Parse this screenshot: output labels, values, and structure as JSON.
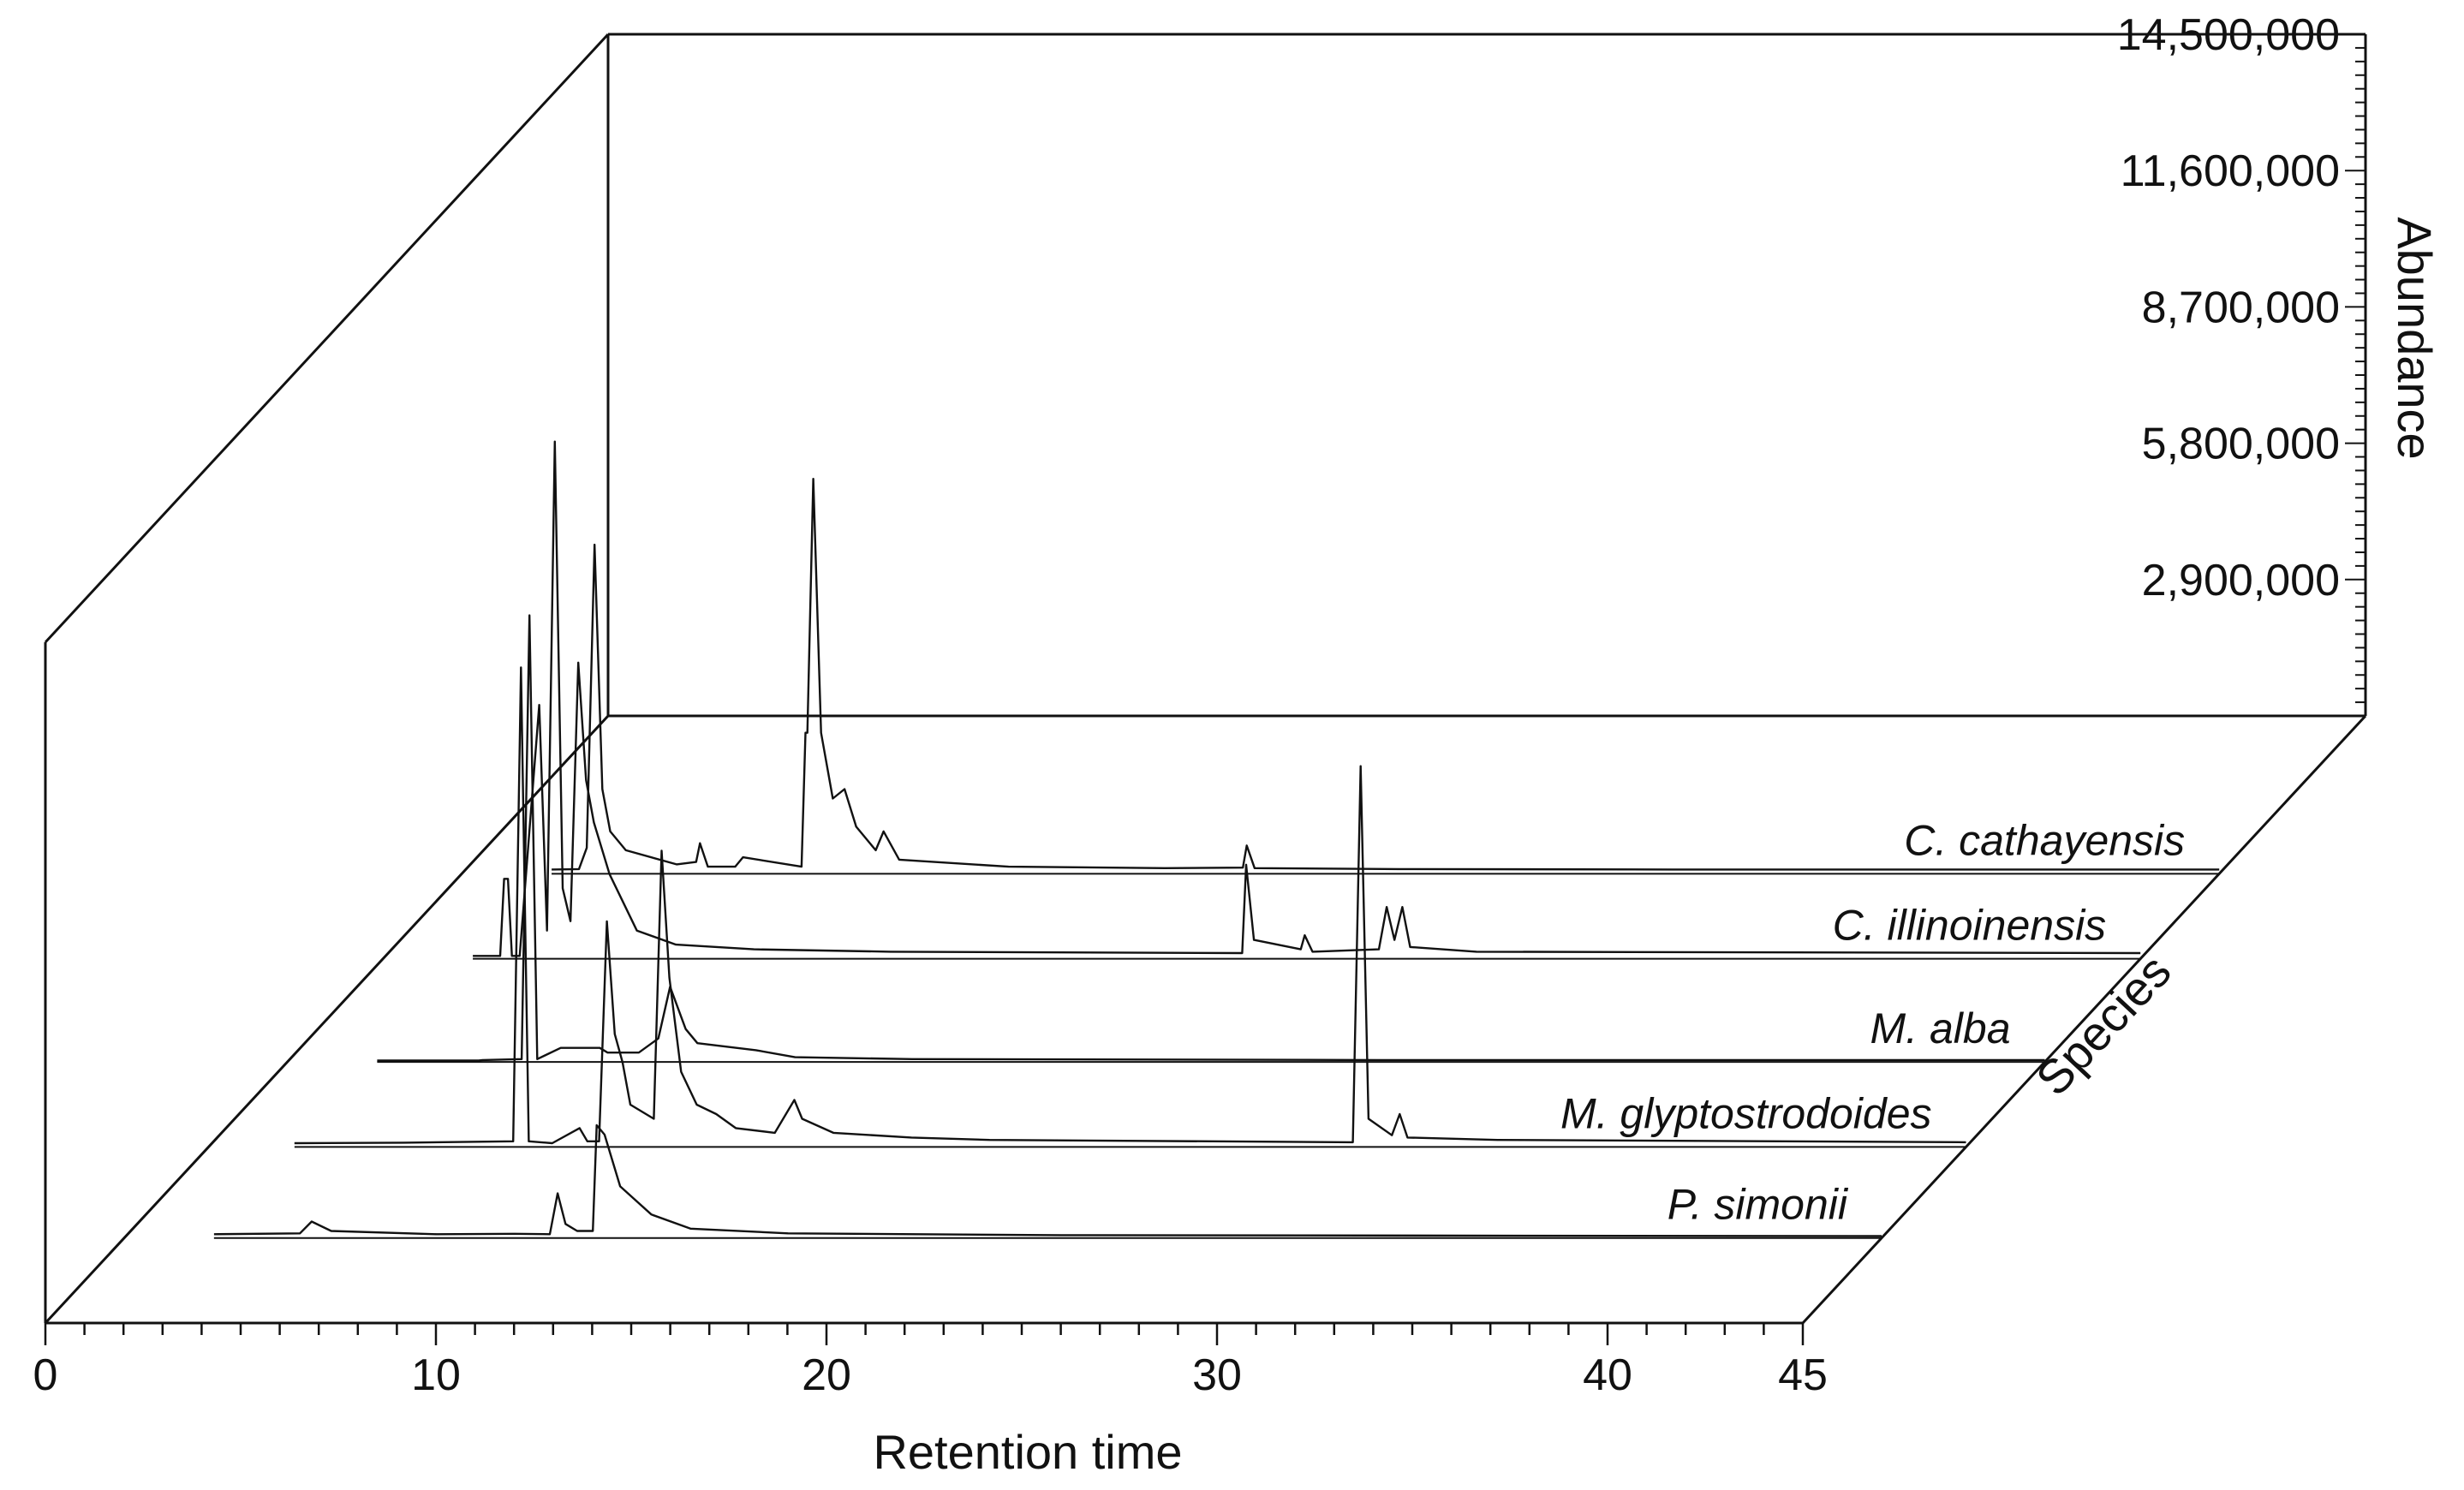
{
  "chart_data": {
    "type": "line",
    "title": "",
    "xlabel": "Retention time",
    "ylabel": "Abundance",
    "zlabel": "Species",
    "x_ticks": [
      "0",
      "10",
      "20",
      "30",
      "40",
      "45"
    ],
    "xlim": [
      0,
      45
    ],
    "y_ticks": [
      "2,900,000",
      "5,800,000",
      "8,700,000",
      "11,600,000",
      "14,500,000"
    ],
    "ylim": [
      0,
      14500000
    ],
    "series": [
      {
        "name": "P. simonii",
        "points": [
          [
            2.3,
            80000
          ],
          [
            4.5,
            100000
          ],
          [
            4.8,
            350000
          ],
          [
            5.3,
            150000
          ],
          [
            8.0,
            80000
          ],
          [
            10.0,
            90000
          ],
          [
            10.9,
            80000
          ],
          [
            11.1,
            950000
          ],
          [
            11.3,
            300000
          ],
          [
            11.6,
            150000
          ],
          [
            12.0,
            150000
          ],
          [
            12.1,
            2400000
          ],
          [
            12.3,
            2200000
          ],
          [
            12.7,
            1100000
          ],
          [
            13.5,
            500000
          ],
          [
            14.5,
            200000
          ],
          [
            17.0,
            100000
          ],
          [
            24.0,
            60000
          ],
          [
            45.0,
            40000
          ]
        ]
      },
      {
        "name": "M. glyptostrodoides",
        "points": [
          [
            2.2,
            80000
          ],
          [
            5.0,
            90000
          ],
          [
            7.8,
            120000
          ],
          [
            8.0,
            10200000
          ],
          [
            8.2,
            120000
          ],
          [
            8.8,
            80000
          ],
          [
            9.5,
            400000
          ],
          [
            9.7,
            120000
          ],
          [
            10.0,
            120000
          ],
          [
            10.2,
            4800000
          ],
          [
            10.4,
            2400000
          ],
          [
            10.6,
            1800000
          ],
          [
            10.8,
            900000
          ],
          [
            11.4,
            600000
          ],
          [
            11.6,
            6300000
          ],
          [
            11.8,
            3600000
          ],
          [
            12.1,
            1600000
          ],
          [
            12.5,
            900000
          ],
          [
            13.0,
            700000
          ],
          [
            13.5,
            400000
          ],
          [
            14.5,
            300000
          ],
          [
            15.0,
            1000000
          ],
          [
            15.2,
            600000
          ],
          [
            16.0,
            300000
          ],
          [
            18.0,
            200000
          ],
          [
            20.0,
            150000
          ],
          [
            29.3,
            100000
          ],
          [
            29.5,
            8100000
          ],
          [
            29.7,
            600000
          ],
          [
            30.3,
            250000
          ],
          [
            30.5,
            700000
          ],
          [
            30.7,
            200000
          ],
          [
            33.0,
            150000
          ],
          [
            45.0,
            100000
          ]
        ]
      },
      {
        "name": "M. alba",
        "points": [
          [
            2.3,
            30000
          ],
          [
            4.9,
            30000
          ],
          [
            5.0,
            40000
          ],
          [
            6.0,
            60000
          ],
          [
            6.2,
            9500000
          ],
          [
            6.4,
            60000
          ],
          [
            7.0,
            300000
          ],
          [
            8.0,
            300000
          ],
          [
            8.2,
            200000
          ],
          [
            9.0,
            200000
          ],
          [
            9.5,
            500000
          ],
          [
            9.8,
            1600000
          ],
          [
            10.2,
            700000
          ],
          [
            10.5,
            400000
          ],
          [
            11.5,
            300000
          ],
          [
            12.0,
            250000
          ],
          [
            13.0,
            100000
          ],
          [
            16.0,
            60000
          ],
          [
            28.0,
            40000
          ],
          [
            45.0,
            40000
          ]
        ]
      },
      {
        "name": "C. illinoinensis",
        "points": [
          [
            2.3,
            60000
          ],
          [
            3.0,
            60000
          ],
          [
            3.1,
            1700000
          ],
          [
            3.2,
            1700000
          ],
          [
            3.3,
            60000
          ],
          [
            3.5,
            60000
          ],
          [
            4.0,
            5400000
          ],
          [
            4.2,
            600000
          ],
          [
            4.4,
            11000000
          ],
          [
            4.6,
            1500000
          ],
          [
            4.8,
            800000
          ],
          [
            5.0,
            6300000
          ],
          [
            5.2,
            3800000
          ],
          [
            5.4,
            2900000
          ],
          [
            5.8,
            1800000
          ],
          [
            6.5,
            600000
          ],
          [
            7.5,
            300000
          ],
          [
            9.5,
            200000
          ],
          [
            13.0,
            150000
          ],
          [
            22.0,
            120000
          ],
          [
            22.1,
            2000000
          ],
          [
            22.3,
            400000
          ],
          [
            23.5,
            200000
          ],
          [
            23.6,
            500000
          ],
          [
            23.8,
            150000
          ],
          [
            25.5,
            200000
          ],
          [
            25.7,
            1100000
          ],
          [
            25.9,
            400000
          ],
          [
            26.1,
            1100000
          ],
          [
            26.3,
            250000
          ],
          [
            28.0,
            150000
          ],
          [
            45.0,
            120000
          ]
        ]
      },
      {
        "name": "C. cathayensis",
        "points": [
          [
            2.3,
            90000
          ],
          [
            3.0,
            100000
          ],
          [
            3.2,
            550000
          ],
          [
            3.4,
            7000000
          ],
          [
            3.6,
            1800000
          ],
          [
            3.8,
            900000
          ],
          [
            4.2,
            500000
          ],
          [
            5.5,
            200000
          ],
          [
            6.0,
            250000
          ],
          [
            6.1,
            650000
          ],
          [
            6.3,
            150000
          ],
          [
            7.0,
            150000
          ],
          [
            7.2,
            350000
          ],
          [
            8.7,
            150000
          ],
          [
            8.8,
            3000000
          ],
          [
            8.85,
            3000000
          ],
          [
            9.0,
            8400000
          ],
          [
            9.2,
            3000000
          ],
          [
            9.5,
            1600000
          ],
          [
            9.8,
            1800000
          ],
          [
            10.1,
            1000000
          ],
          [
            10.6,
            500000
          ],
          [
            10.8,
            900000
          ],
          [
            11.2,
            300000
          ],
          [
            14.0,
            150000
          ],
          [
            18.0,
            120000
          ],
          [
            20.0,
            130000
          ],
          [
            20.1,
            600000
          ],
          [
            20.3,
            120000
          ],
          [
            24.0,
            100000
          ],
          [
            31.0,
            90000
          ],
          [
            45.0,
            90000
          ]
        ]
      }
    ],
    "legend": "none"
  }
}
